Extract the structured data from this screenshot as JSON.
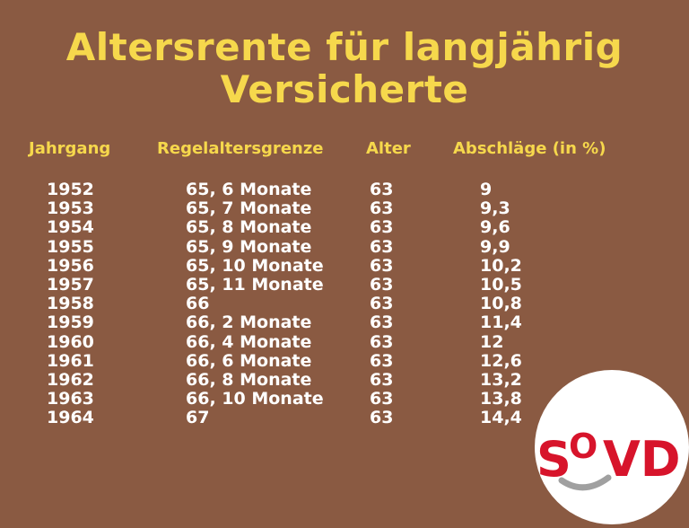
{
  "title": {
    "line1": "Altersrente für langjährig",
    "line2": "Versicherte"
  },
  "headers": {
    "jahrgang": "Jahrgang",
    "regelaltersgrenze": "Regelaltersgrenze",
    "alter": "Alter",
    "abschlaege": "Abschläge (in %)"
  },
  "rows": [
    {
      "jahrgang": "1952",
      "regel": "65, 6 Monate",
      "alter": "63",
      "abschlag": "9"
    },
    {
      "jahrgang": "1953",
      "regel": "65, 7 Monate",
      "alter": "63",
      "abschlag": "9,3"
    },
    {
      "jahrgang": "1954",
      "regel": "65, 8 Monate",
      "alter": "63",
      "abschlag": "9,6"
    },
    {
      "jahrgang": "1955",
      "regel": "65, 9 Monate",
      "alter": "63",
      "abschlag": "9,9"
    },
    {
      "jahrgang": "1956",
      "regel": "65, 10 Monate",
      "alter": "63",
      "abschlag": "10,2"
    },
    {
      "jahrgang": "1957",
      "regel": "65, 11 Monate",
      "alter": "63",
      "abschlag": "10,5"
    },
    {
      "jahrgang": "1958",
      "regel": "66",
      "alter": "63",
      "abschlag": "10,8"
    },
    {
      "jahrgang": "1959",
      "regel": "66, 2 Monate",
      "alter": "63",
      "abschlag": "11,4"
    },
    {
      "jahrgang": "1960",
      "regel": "66, 4 Monate",
      "alter": "63",
      "abschlag": "12"
    },
    {
      "jahrgang": "1961",
      "regel": "66, 6 Monate",
      "alter": "63",
      "abschlag": "12,6"
    },
    {
      "jahrgang": "1962",
      "regel": "66, 8 Monate",
      "alter": "63",
      "abschlag": "13,2"
    },
    {
      "jahrgang": "1963",
      "regel": "66, 10 Monate",
      "alter": "63",
      "abschlag": "13,8"
    },
    {
      "jahrgang": "1964",
      "regel": "67",
      "alter": "63",
      "abschlag": "14,4"
    }
  ],
  "logo": {
    "text": "SOVD",
    "color": "#d7142b"
  },
  "colors": {
    "background": "#8a5a42",
    "accent": "#f6d84c"
  }
}
